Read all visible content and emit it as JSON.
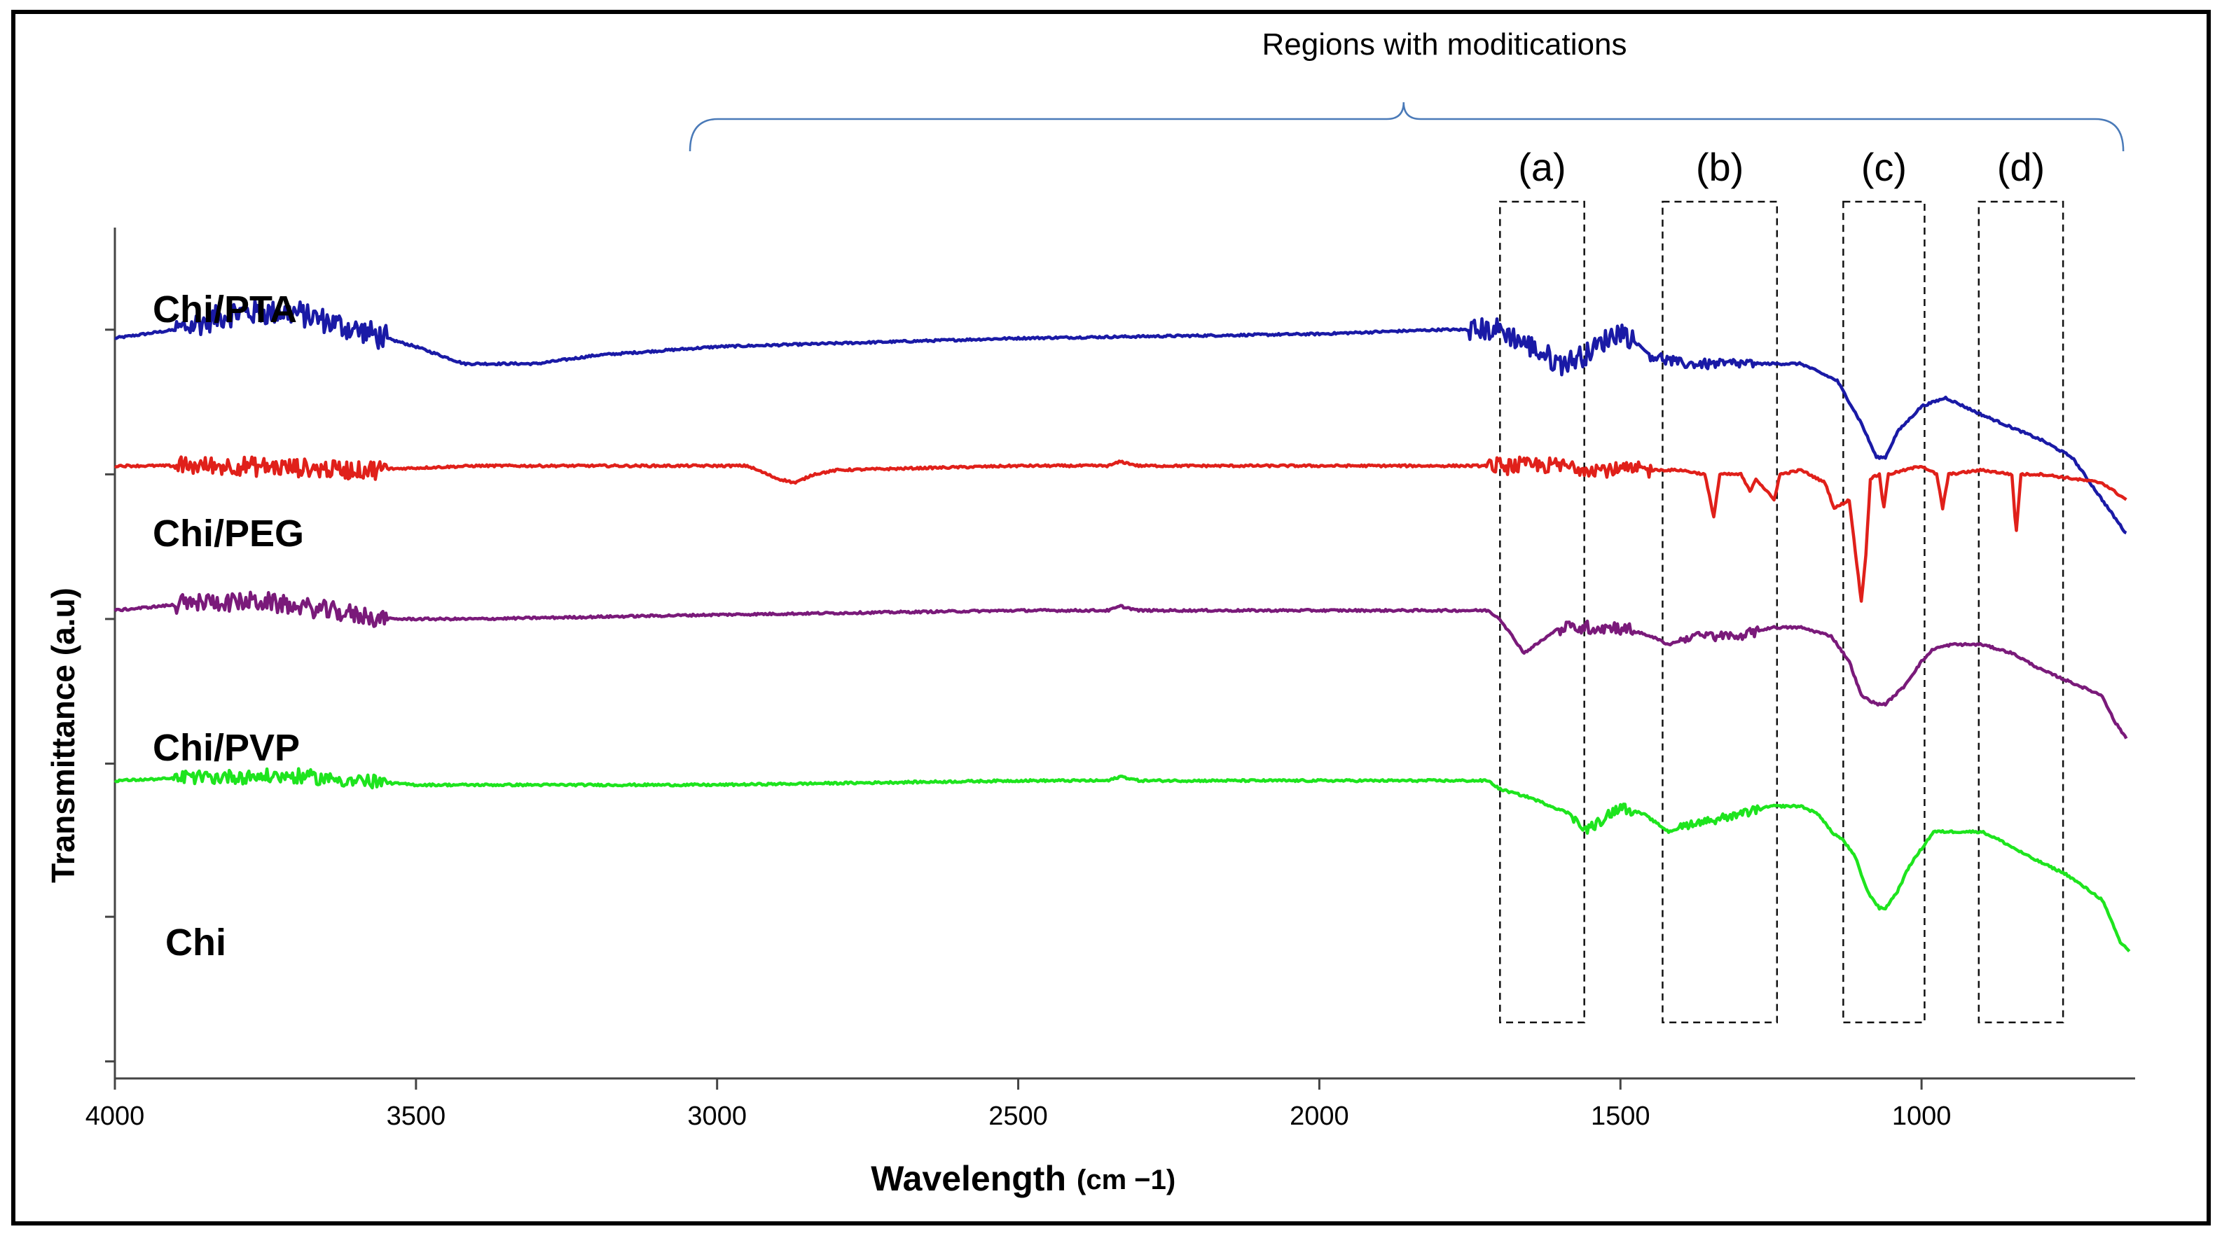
{
  "chart_data": {
    "type": "line",
    "title": "",
    "xlabel": "Wavelength",
    "xlabel_unit": "(cm −1)",
    "ylabel": "Transmittance (a.u)",
    "xlim": [
      4000,
      650
    ],
    "x_reversed": true,
    "xticks": [
      4000,
      3500,
      3000,
      2500,
      2000,
      1500,
      1000
    ],
    "xtick_labels": [
      "4000",
      "3500",
      "3000",
      "2500",
      "2000",
      "1500",
      "1000"
    ],
    "ylim": [
      0,
      100
    ],
    "yticks": [
      2,
      19,
      37,
      54,
      71,
      88
    ],
    "y_units": "arbitrary (stacked offsets)",
    "annotation": {
      "text": "Regions with moditications",
      "range": [
        3045,
        665
      ],
      "peak_at": 1860
    },
    "regions": [
      {
        "label": "(a)",
        "letter": "a",
        "range": [
          1700,
          1560
        ]
      },
      {
        "label": "(b)",
        "letter": "b",
        "range": [
          1430,
          1240
        ]
      },
      {
        "label": "(c)",
        "letter": "c",
        "range": [
          1130,
          995
        ]
      },
      {
        "label": "(d)",
        "letter": "d",
        "range": [
          905,
          765
        ]
      }
    ],
    "series": [
      {
        "name": "Chi/PTA",
        "label": "Chi/PTA",
        "color": "#1a1aa6",
        "baseline": 87,
        "noise": [
          [
            3900,
            3550,
            2.5
          ],
          [
            1750,
            1480,
            2.2
          ],
          [
            1450,
            1280,
            1.0
          ]
        ],
        "points": [
          [
            4000,
            87
          ],
          [
            3900,
            88
          ],
          [
            3800,
            90
          ],
          [
            3700,
            90
          ],
          [
            3600,
            88
          ],
          [
            3500,
            86
          ],
          [
            3420,
            84
          ],
          [
            3300,
            84
          ],
          [
            3200,
            85
          ],
          [
            3000,
            86
          ],
          [
            2500,
            87
          ],
          [
            2000,
            87.5
          ],
          [
            1800,
            88
          ],
          [
            1700,
            88
          ],
          [
            1650,
            86
          ],
          [
            1600,
            84
          ],
          [
            1560,
            85
          ],
          [
            1500,
            88
          ],
          [
            1450,
            85
          ],
          [
            1400,
            84
          ],
          [
            1300,
            84
          ],
          [
            1200,
            84
          ],
          [
            1140,
            82
          ],
          [
            1100,
            77
          ],
          [
            1075,
            73
          ],
          [
            1060,
            73
          ],
          [
            1040,
            76
          ],
          [
            1000,
            79
          ],
          [
            960,
            80
          ],
          [
            900,
            78
          ],
          [
            800,
            75
          ],
          [
            750,
            73
          ],
          [
            700,
            68
          ],
          [
            660,
            64
          ]
        ]
      },
      {
        "name": "Chi/PEG",
        "label": "Chi/PEG",
        "color": "#e0201a",
        "baseline": 72,
        "noise": [
          [
            3900,
            3550,
            1.8
          ],
          [
            1720,
            1450,
            1.6
          ]
        ],
        "points": [
          [
            4000,
            72
          ],
          [
            3800,
            72
          ],
          [
            3600,
            71.5
          ],
          [
            3400,
            72
          ],
          [
            2950,
            72
          ],
          [
            2900,
            70.5
          ],
          [
            2870,
            70
          ],
          [
            2840,
            71
          ],
          [
            2800,
            71.5
          ],
          [
            2500,
            72
          ],
          [
            2350,
            72
          ],
          [
            2330,
            72.5
          ],
          [
            2300,
            72
          ],
          [
            1800,
            72
          ],
          [
            1600,
            72
          ],
          [
            1500,
            71.5
          ],
          [
            1400,
            71.5
          ],
          [
            1360,
            71
          ],
          [
            1345,
            66
          ],
          [
            1335,
            71
          ],
          [
            1300,
            71
          ],
          [
            1285,
            69
          ],
          [
            1275,
            70.5
          ],
          [
            1245,
            68
          ],
          [
            1235,
            71
          ],
          [
            1200,
            71.5
          ],
          [
            1160,
            70
          ],
          [
            1145,
            67
          ],
          [
            1120,
            68
          ],
          [
            1110,
            62
          ],
          [
            1100,
            56
          ],
          [
            1092,
            62
          ],
          [
            1085,
            70.5
          ],
          [
            1070,
            71
          ],
          [
            1063,
            67
          ],
          [
            1055,
            71
          ],
          [
            1000,
            72
          ],
          [
            975,
            71
          ],
          [
            965,
            67
          ],
          [
            955,
            71
          ],
          [
            900,
            71.5
          ],
          [
            850,
            71
          ],
          [
            843,
            64
          ],
          [
            835,
            71
          ],
          [
            800,
            71
          ],
          [
            700,
            70
          ],
          [
            660,
            68
          ]
        ]
      },
      {
        "name": "Chi/PVP",
        "label": "Chi/PVP",
        "color": "#7a1a7a",
        "baseline": 55,
        "noise": [
          [
            3900,
            3550,
            1.8
          ],
          [
            1600,
            1480,
            1.3
          ],
          [
            1400,
            1270,
            0.9
          ]
        ],
        "points": [
          [
            4000,
            55
          ],
          [
            3850,
            56
          ],
          [
            3750,
            56
          ],
          [
            3650,
            55
          ],
          [
            3550,
            54
          ],
          [
            3400,
            54
          ],
          [
            3000,
            54.5
          ],
          [
            2500,
            55
          ],
          [
            2350,
            55
          ],
          [
            2330,
            55.5
          ],
          [
            2300,
            55
          ],
          [
            2000,
            55
          ],
          [
            1720,
            55
          ],
          [
            1700,
            54
          ],
          [
            1660,
            50
          ],
          [
            1640,
            51
          ],
          [
            1600,
            53
          ],
          [
            1500,
            53
          ],
          [
            1450,
            52
          ],
          [
            1420,
            51
          ],
          [
            1380,
            52
          ],
          [
            1300,
            52
          ],
          [
            1250,
            53
          ],
          [
            1200,
            53
          ],
          [
            1150,
            52
          ],
          [
            1120,
            49
          ],
          [
            1100,
            45
          ],
          [
            1075,
            44
          ],
          [
            1060,
            44
          ],
          [
            1045,
            45
          ],
          [
            1030,
            46
          ],
          [
            1000,
            49
          ],
          [
            980,
            50.5
          ],
          [
            950,
            51
          ],
          [
            900,
            51
          ],
          [
            850,
            50
          ],
          [
            800,
            48
          ],
          [
            700,
            45
          ],
          [
            680,
            42
          ],
          [
            660,
            40
          ]
        ]
      },
      {
        "name": "Chi",
        "label": "Chi",
        "color": "#1ee41e",
        "baseline": 35,
        "noise": [
          [
            3900,
            3550,
            1.4
          ],
          [
            1580,
            1480,
            1.0
          ],
          [
            1400,
            1270,
            0.8
          ]
        ],
        "points": [
          [
            4000,
            35
          ],
          [
            3800,
            35.5
          ],
          [
            3700,
            35.5
          ],
          [
            3600,
            35
          ],
          [
            3500,
            34.5
          ],
          [
            3400,
            34.5
          ],
          [
            3000,
            34.5
          ],
          [
            2500,
            35
          ],
          [
            2350,
            35
          ],
          [
            2330,
            35.5
          ],
          [
            2300,
            35
          ],
          [
            2000,
            35
          ],
          [
            1720,
            35
          ],
          [
            1700,
            34
          ],
          [
            1650,
            33
          ],
          [
            1580,
            31
          ],
          [
            1560,
            29
          ],
          [
            1540,
            30
          ],
          [
            1500,
            32
          ],
          [
            1460,
            31
          ],
          [
            1420,
            29
          ],
          [
            1380,
            30
          ],
          [
            1300,
            31
          ],
          [
            1250,
            32
          ],
          [
            1200,
            32
          ],
          [
            1170,
            31
          ],
          [
            1150,
            29
          ],
          [
            1130,
            28
          ],
          [
            1110,
            26
          ],
          [
            1090,
            22
          ],
          [
            1070,
            20
          ],
          [
            1060,
            20
          ],
          [
            1040,
            22
          ],
          [
            1020,
            25
          ],
          [
            1000,
            27
          ],
          [
            980,
            29
          ],
          [
            950,
            29
          ],
          [
            900,
            29
          ],
          [
            870,
            28
          ],
          [
            820,
            26
          ],
          [
            760,
            24
          ],
          [
            700,
            21
          ],
          [
            670,
            16
          ],
          [
            655,
            15
          ]
        ]
      }
    ]
  }
}
